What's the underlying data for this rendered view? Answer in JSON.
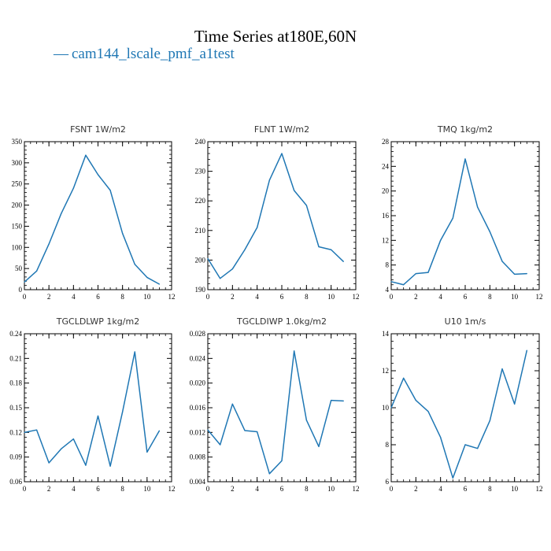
{
  "header": {
    "title": "Time Series at180E,60N",
    "legend_label": "cam144_lscale_pmf_a1test",
    "legend_dash": "—"
  },
  "colors": {
    "series": "#1f77b4",
    "axis": "#000000"
  },
  "chart_data": [
    {
      "type": "line",
      "title": "FSNT   1W/m2",
      "xlabel": "",
      "ylabel": "",
      "xlim": [
        0,
        12
      ],
      "ylim": [
        0,
        350
      ],
      "xticks": [
        0,
        2,
        4,
        6,
        8,
        10,
        12
      ],
      "xtick_labels": [
        "0",
        "2",
        "4",
        "6",
        "8",
        "10",
        "12"
      ],
      "yticks": [
        0,
        50,
        100,
        150,
        200,
        250,
        300,
        350
      ],
      "ytick_labels": [
        "0",
        "50",
        "100",
        "150",
        "200",
        "250",
        "300",
        "350"
      ],
      "x": [
        0,
        1,
        2,
        3,
        4,
        5,
        6,
        7,
        8,
        9,
        10,
        11
      ],
      "series": [
        {
          "values": [
            18,
            44,
            108,
            180,
            240,
            318,
            272,
            235,
            133,
            60,
            29,
            13
          ]
        }
      ]
    },
    {
      "type": "line",
      "title": "FLNT   1W/m2",
      "xlabel": "",
      "ylabel": "",
      "xlim": [
        0,
        12
      ],
      "ylim": [
        190,
        240
      ],
      "xticks": [
        0,
        2,
        4,
        6,
        8,
        10,
        12
      ],
      "xtick_labels": [
        "0",
        "2",
        "4",
        "6",
        "8",
        "10",
        "12"
      ],
      "yticks": [
        190,
        200,
        210,
        220,
        230,
        240
      ],
      "ytick_labels": [
        "190",
        "200",
        "210",
        "220",
        "230",
        "240"
      ],
      "x": [
        0,
        1,
        2,
        3,
        4,
        5,
        6,
        7,
        8,
        9,
        10,
        11
      ],
      "series": [
        {
          "values": [
            200.5,
            193.8,
            197.0,
            203.5,
            211.0,
            227.0,
            236.0,
            223.5,
            218.5,
            204.5,
            203.5,
            199.5
          ]
        }
      ]
    },
    {
      "type": "line",
      "title": "TMQ   1kg/m2",
      "xlabel": "",
      "ylabel": "",
      "xlim": [
        0,
        12
      ],
      "ylim": [
        4,
        28
      ],
      "xticks": [
        0,
        2,
        4,
        6,
        8,
        10,
        12
      ],
      "xtick_labels": [
        "0",
        "2",
        "4",
        "6",
        "8",
        "10",
        "12"
      ],
      "yticks": [
        4,
        8,
        12,
        16,
        20,
        24,
        28
      ],
      "ytick_labels": [
        "4",
        "8",
        "12",
        "16",
        "20",
        "24",
        "28"
      ],
      "x": [
        0,
        1,
        2,
        3,
        4,
        5,
        6,
        7,
        8,
        9,
        10,
        11
      ],
      "series": [
        {
          "values": [
            5.3,
            4.8,
            6.6,
            6.8,
            12.0,
            15.6,
            25.2,
            17.4,
            13.4,
            8.6,
            6.5,
            6.6
          ]
        }
      ]
    },
    {
      "type": "line",
      "title": "TGCLDLWP   1kg/m2",
      "xlabel": "",
      "ylabel": "",
      "xlim": [
        0,
        12
      ],
      "ylim": [
        0.06,
        0.24
      ],
      "xticks": [
        0,
        2,
        4,
        6,
        8,
        10,
        12
      ],
      "xtick_labels": [
        "0",
        "2",
        "4",
        "6",
        "8",
        "10",
        "12"
      ],
      "yticks": [
        0.06,
        0.09,
        0.12,
        0.15,
        0.18,
        0.21,
        0.24
      ],
      "ytick_labels": [
        "0.06",
        "0.09",
        "0.12",
        "0.15",
        "0.18",
        "0.21",
        "0.24"
      ],
      "x": [
        0,
        1,
        2,
        3,
        4,
        5,
        6,
        7,
        8,
        9,
        10,
        11
      ],
      "series": [
        {
          "values": [
            0.12,
            0.123,
            0.083,
            0.1,
            0.112,
            0.08,
            0.14,
            0.079,
            0.145,
            0.218,
            0.096,
            0.122
          ]
        }
      ]
    },
    {
      "type": "line",
      "title": "TGCLDIWP   1.0kg/m2",
      "xlabel": "",
      "ylabel": "",
      "xlim": [
        0,
        12
      ],
      "ylim": [
        0.004,
        0.028
      ],
      "xticks": [
        0,
        2,
        4,
        6,
        8,
        10,
        12
      ],
      "xtick_labels": [
        "0",
        "2",
        "4",
        "6",
        "8",
        "10",
        "12"
      ],
      "yticks": [
        0.004,
        0.008,
        0.012,
        0.016,
        0.02,
        0.024,
        0.028
      ],
      "ytick_labels": [
        "0.004",
        "0.008",
        "0.012",
        "0.016",
        "0.020",
        "0.024",
        "0.028"
      ],
      "x": [
        0,
        1,
        2,
        3,
        4,
        5,
        6,
        7,
        8,
        9,
        10,
        11
      ],
      "series": [
        {
          "values": [
            0.0124,
            0.01,
            0.0166,
            0.0123,
            0.0121,
            0.0053,
            0.0074,
            0.0252,
            0.014,
            0.0097,
            0.0172,
            0.0171
          ]
        }
      ]
    },
    {
      "type": "line",
      "title": "U10   1m/s",
      "xlabel": "",
      "ylabel": "",
      "xlim": [
        0,
        12
      ],
      "ylim": [
        6,
        14
      ],
      "xticks": [
        0,
        2,
        4,
        6,
        8,
        10,
        12
      ],
      "xtick_labels": [
        "0",
        "2",
        "4",
        "6",
        "8",
        "10",
        "12"
      ],
      "yticks": [
        6,
        8,
        10,
        12,
        14
      ],
      "ytick_labels": [
        "6",
        "8",
        "10",
        "12",
        "14"
      ],
      "x": [
        0,
        1,
        2,
        3,
        4,
        5,
        6,
        7,
        8,
        9,
        10,
        11
      ],
      "series": [
        {
          "values": [
            10.0,
            11.6,
            10.4,
            9.8,
            8.4,
            6.2,
            8.0,
            7.8,
            9.3,
            12.1,
            10.2,
            13.1
          ]
        }
      ]
    }
  ]
}
